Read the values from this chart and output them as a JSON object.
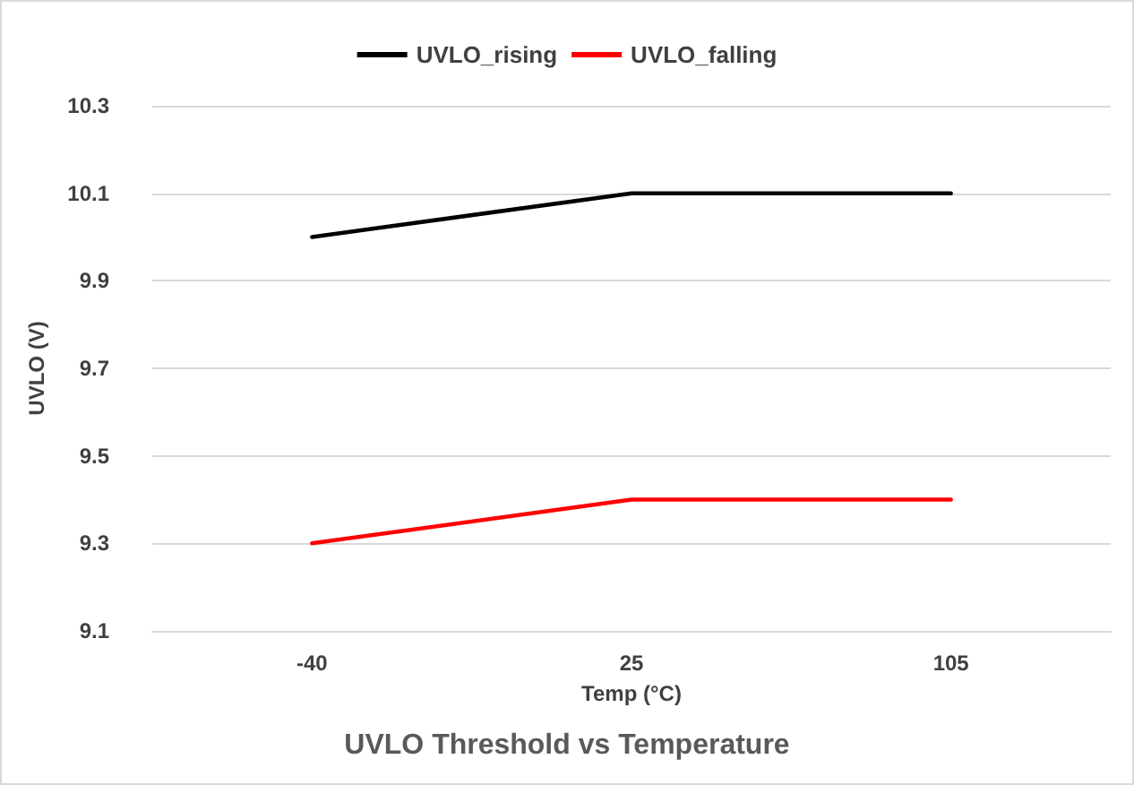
{
  "chart_data": {
    "type": "line",
    "title": "UVLO Threshold vs Temperature",
    "xlabel": "Temp (°C)",
    "ylabel": "UVLO (V)",
    "categories": [
      "-40",
      "25",
      "105"
    ],
    "series": [
      {
        "name": "UVLO_rising",
        "color": "#000000",
        "values": [
          10.0,
          10.1,
          10.1
        ]
      },
      {
        "name": "UVLO_falling",
        "color": "#ff0000",
        "values": [
          9.3,
          9.4,
          9.4
        ]
      }
    ],
    "ylim": [
      9.1,
      10.3
    ],
    "yticks": [
      9.1,
      9.3,
      9.5,
      9.7,
      9.9,
      10.1,
      10.3
    ],
    "grid": "y",
    "legend": "top",
    "marker": "none",
    "line_style": "solid"
  }
}
